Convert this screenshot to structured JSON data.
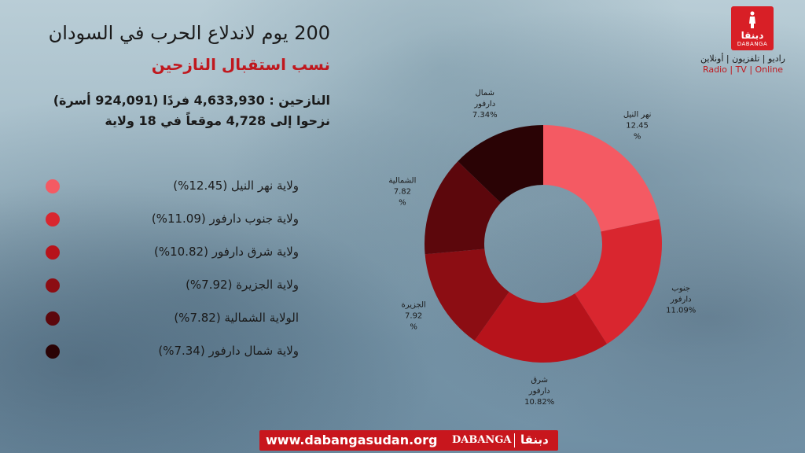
{
  "header": {
    "title": "200 يوم لاندلاع الحرب في السودان",
    "subtitle": "نسب استقبال النازحين",
    "info_line1": "النازحين : 4,633,930 فردًا (924,091 أسرة)",
    "info_line2": "نزحوا إلى 4,728 موقعاً في 18 ولاية"
  },
  "legend": [
    {
      "label": "ولاية نهر النيل (12.45%)",
      "color": "#f45a63"
    },
    {
      "label": "ولاية جنوب دارفور (11.09%)",
      "color": "#d9262f"
    },
    {
      "label": "ولاية شرق دارفور (10.82%)",
      "color": "#b7131b"
    },
    {
      "label": "ولاية الجزيرة (7.92%)",
      "color": "#8c0d13"
    },
    {
      "label": "الولاية الشمالية (7.82%)",
      "color": "#5c070c"
    },
    {
      "label": "ولاية شمال دارفور (7.34%)",
      "color": "#2a0305"
    }
  ],
  "chart_data": {
    "type": "pie",
    "categories": [
      "نهر النيل",
      "جنوب دارفور",
      "شرق دارفور",
      "الجزيرة",
      "الشمالية",
      "شمال دارفور"
    ],
    "values": [
      12.45,
      11.09,
      10.82,
      7.92,
      7.82,
      7.34
    ],
    "colors": [
      "#f45a63",
      "#d9262f",
      "#b7131b",
      "#8c0d13",
      "#5c070c",
      "#2a0305"
    ],
    "slice_labels": [
      [
        "نهر النيل",
        "12.45",
        "%"
      ],
      [
        "جنوب",
        "دارفور",
        "11.09%"
      ],
      [
        "شرق",
        "دارفور",
        "10.82%"
      ],
      [
        "الجزيرة",
        "7.92",
        "%"
      ],
      [
        "الشمالية",
        "7.82",
        "%"
      ],
      [
        "شمال",
        "دارفور",
        "7.34%"
      ]
    ]
  },
  "logo": {
    "arabic": "دبنقا",
    "english": "DABANGA",
    "tagline_ar": "راديو | تلفزيون | أونلاين",
    "tagline_en": "Radio | TV | Online"
  },
  "footer": {
    "url": "www.dabangasudan.org",
    "brand": "DABANGA",
    "arabic": "دبنقا"
  }
}
